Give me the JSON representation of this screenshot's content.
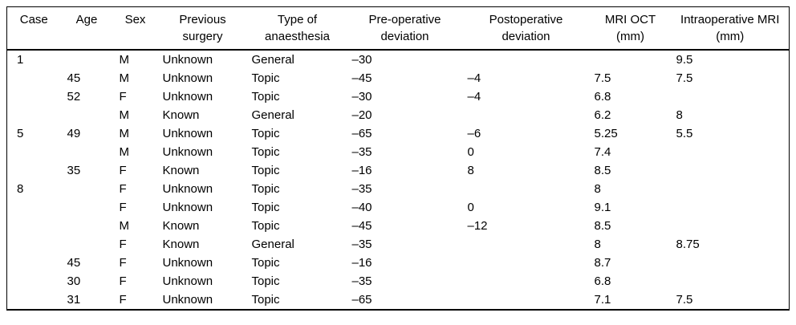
{
  "colors": {
    "background": "#ffffff",
    "text": "#000000",
    "rule": "#000000"
  },
  "table": {
    "headers": [
      {
        "id": "case",
        "lines": [
          "Case"
        ]
      },
      {
        "id": "age",
        "lines": [
          "Age"
        ]
      },
      {
        "id": "sex",
        "lines": [
          "Sex"
        ]
      },
      {
        "id": "previous-surgery",
        "lines": [
          "Previous",
          "surgery"
        ]
      },
      {
        "id": "type-of-anaesthesia",
        "lines": [
          "Type of",
          "anaesthesia"
        ]
      },
      {
        "id": "pre-operative-deviation",
        "lines": [
          "Pre-operative",
          "deviation"
        ]
      },
      {
        "id": "postoperative-deviation",
        "lines": [
          "Postoperative",
          "deviation"
        ]
      },
      {
        "id": "mri-oct-mm",
        "lines": [
          "MRI OCT",
          "(mm)"
        ]
      },
      {
        "id": "intraoperative-mri-mm",
        "lines": [
          "Intraoperative MRI",
          "(mm)"
        ]
      }
    ],
    "rows": [
      [
        "1",
        "",
        "M",
        "Unknown",
        "General",
        "–30",
        "",
        "",
        "9.5"
      ],
      [
        "",
        "45",
        "M",
        "Unknown",
        "Topic",
        "–45",
        "–4",
        "7.5",
        "7.5"
      ],
      [
        "",
        "52",
        "F",
        "Unknown",
        "Topic",
        "–30",
        "–4",
        "6.8",
        ""
      ],
      [
        "",
        "",
        "M",
        "Known",
        "General",
        "–20",
        "",
        "6.2",
        "8"
      ],
      [
        "5",
        "49",
        "M",
        "Unknown",
        "Topic",
        "–65",
        "–6",
        "5.25",
        "5.5"
      ],
      [
        "",
        "",
        "M",
        "Unknown",
        "Topic",
        "–35",
        "0",
        "7.4",
        ""
      ],
      [
        "",
        "35",
        "F",
        "Known",
        "Topic",
        "–16",
        "8",
        "8.5",
        ""
      ],
      [
        "8",
        "",
        "F",
        "Unknown",
        "Topic",
        "–35",
        "",
        "8",
        ""
      ],
      [
        "",
        "",
        "F",
        "Unknown",
        "Topic",
        "–40",
        "0",
        "9.1",
        ""
      ],
      [
        "",
        "",
        "M",
        "Known",
        "Topic",
        "–45",
        "–12",
        "8.5",
        ""
      ],
      [
        "",
        "",
        "F",
        "Known",
        "General",
        "–35",
        "",
        "8",
        "8.75"
      ],
      [
        "",
        "45",
        "F",
        "Unknown",
        "Topic",
        "–16",
        "",
        "8.7",
        ""
      ],
      [
        "",
        "30",
        "F",
        "Unknown",
        "Topic",
        "–35",
        "",
        "6.8",
        ""
      ],
      [
        "",
        "31",
        "F",
        "Unknown",
        "Topic",
        "–65",
        "",
        "7.1",
        "7.5"
      ]
    ]
  }
}
